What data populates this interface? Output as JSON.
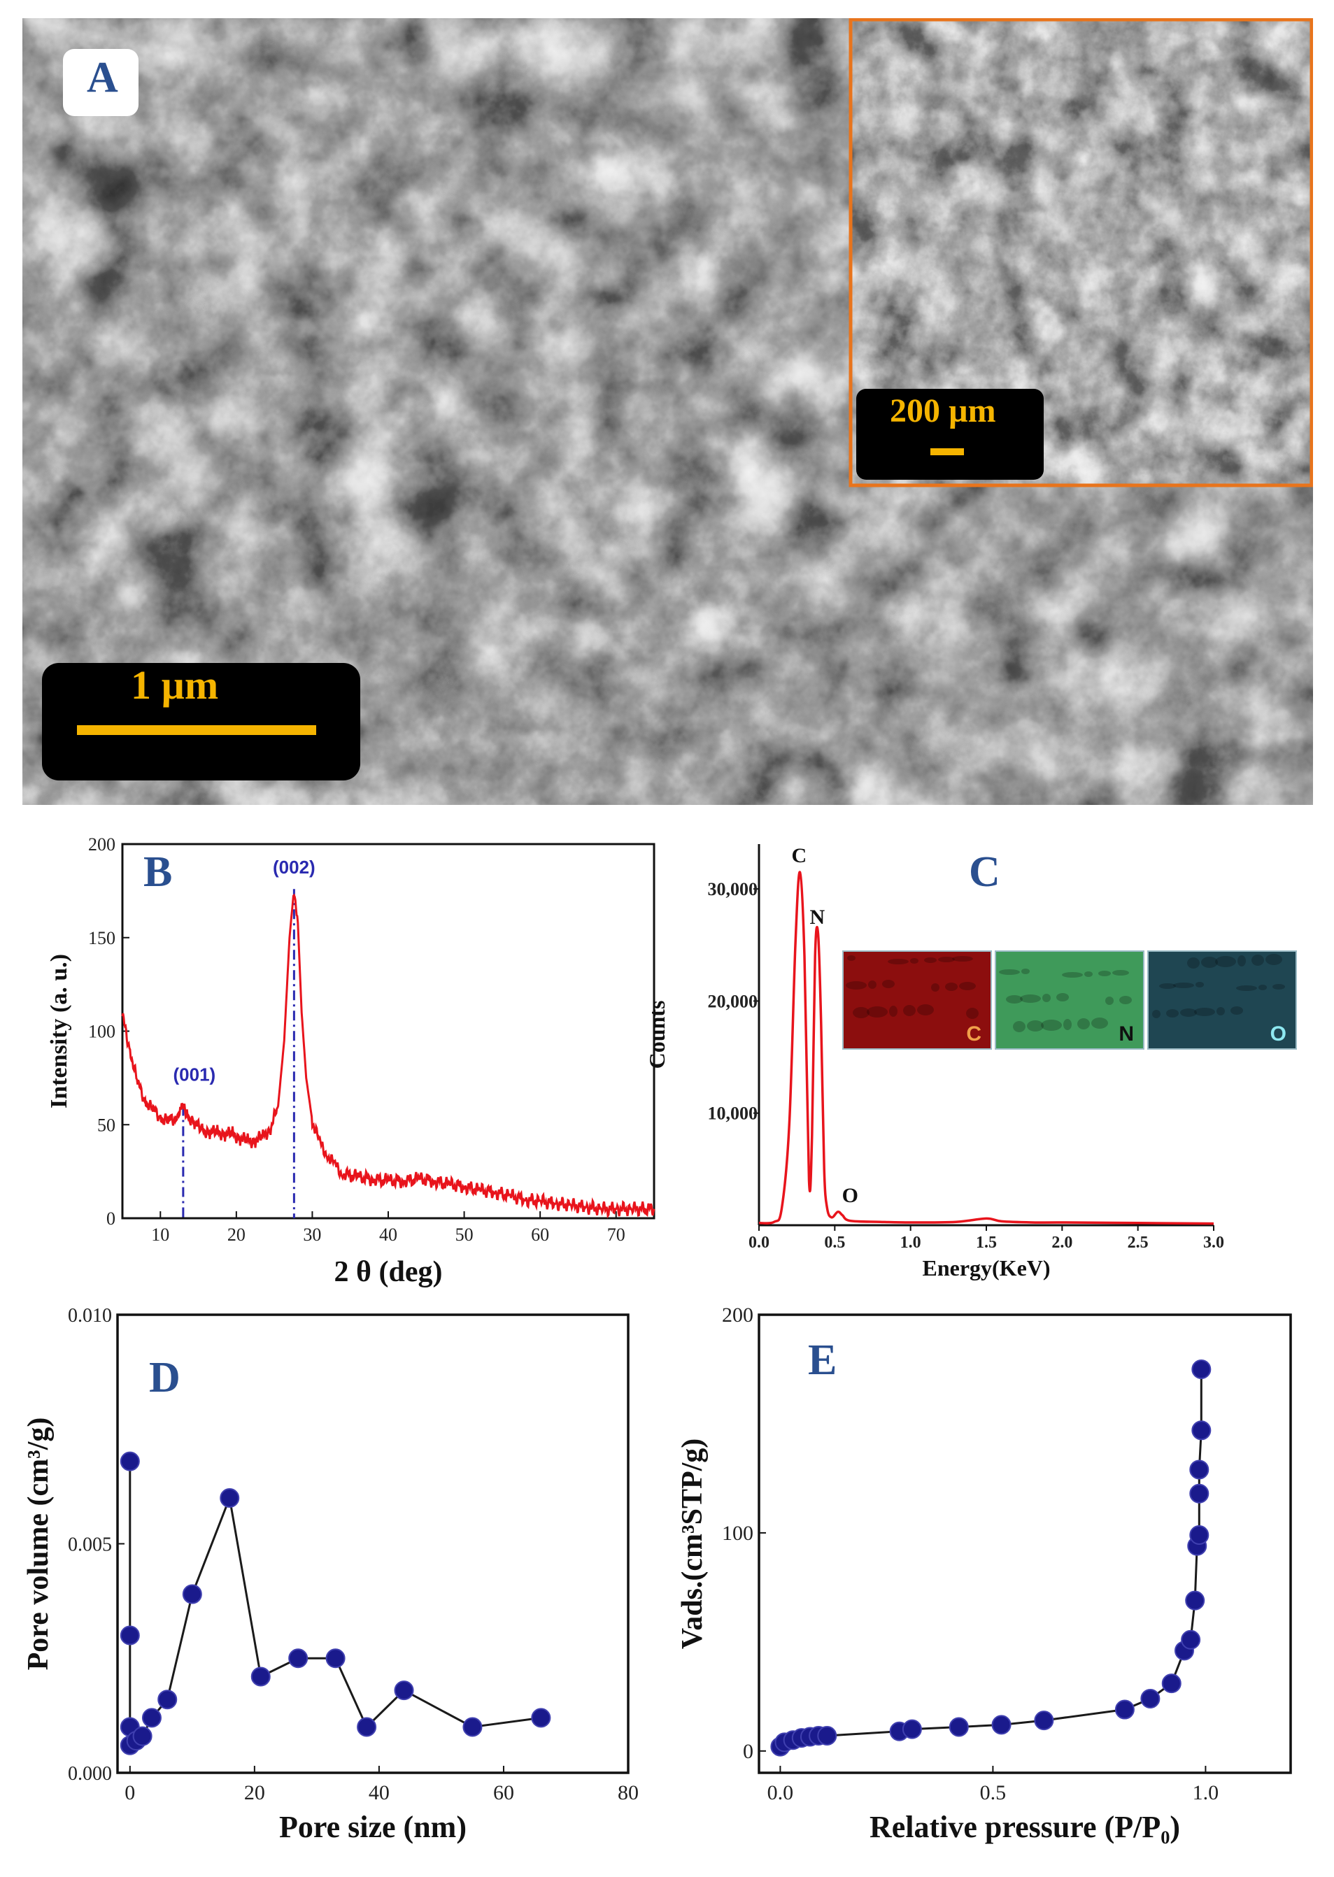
{
  "panel_a": {
    "letter": "A",
    "scalebar_main": "1 µm",
    "scalebar_inset": "200 µm",
    "inset_border_color": "#e8741c",
    "scalebar_color": "#f5b400"
  },
  "chart_data": [
    {
      "id": "B",
      "letter": "B",
      "type": "line",
      "xlabel": "2 θ (deg)",
      "ylabel": "Intensity (a. u.)",
      "xlim": [
        5,
        75
      ],
      "ylim": [
        0,
        200
      ],
      "xticks": [
        10,
        20,
        30,
        40,
        50,
        60,
        70
      ],
      "yticks": [
        0,
        50,
        100,
        150,
        200
      ],
      "line_color": "#e8141c",
      "x": [
        5,
        6,
        7,
        8,
        9,
        10,
        11,
        12,
        12.7,
        13.5,
        14.5,
        15.5,
        16.5,
        17.5,
        18.5,
        19.5,
        20.5,
        21.5,
        22.5,
        23.5,
        24.5,
        25.5,
        26.3,
        27,
        27.6,
        28.1,
        28.6,
        29.2,
        30,
        31,
        32,
        33,
        34,
        36,
        38,
        40,
        42,
        44,
        46,
        48,
        50,
        52,
        54,
        56,
        58,
        60,
        62,
        64,
        66,
        68,
        70,
        72,
        75
      ],
      "y": [
        108,
        90,
        72,
        63,
        58,
        54,
        52,
        53,
        60,
        56,
        50,
        48,
        45,
        47,
        44,
        46,
        42,
        42,
        41,
        44,
        48,
        60,
        95,
        150,
        176,
        158,
        110,
        75,
        52,
        40,
        34,
        28,
        24,
        22,
        21,
        20,
        20,
        21,
        20,
        18,
        17,
        15,
        14,
        12,
        10,
        9,
        8,
        7,
        6,
        5,
        5,
        5,
        5
      ],
      "annotations": [
        {
          "label": "(001)",
          "x": 13.0,
          "y": 60
        },
        {
          "label": "(002)",
          "x": 27.6,
          "y": 176
        }
      ],
      "annotation_color": "#2a2ab0"
    },
    {
      "id": "C",
      "letter": "C",
      "type": "line",
      "xlabel": "Energy(KeV)",
      "ylabel": "Counts",
      "xlim": [
        0,
        3.0
      ],
      "ylim": [
        0,
        34000
      ],
      "xticks": [
        "0.0",
        "0.5",
        "1.0",
        "1.5",
        "2.0",
        "2.5",
        "3.0"
      ],
      "ytick_values": [
        10000,
        20000,
        30000
      ],
      "ytick_labels": [
        "10,000",
        "20,000",
        "30,000"
      ],
      "line_color": "#e8141c",
      "x": [
        0.0,
        0.1,
        0.15,
        0.2,
        0.24,
        0.27,
        0.3,
        0.33,
        0.35,
        0.37,
        0.39,
        0.41,
        0.43,
        0.45,
        0.48,
        0.52,
        0.55,
        0.6,
        0.8,
        1.0,
        1.3,
        1.5,
        1.6,
        1.8,
        2.0,
        2.5,
        3.0
      ],
      "y": [
        200,
        300,
        1500,
        9000,
        25000,
        31500,
        24000,
        4000,
        8000,
        24000,
        26000,
        18000,
        5000,
        1500,
        700,
        1200,
        900,
        400,
        300,
        250,
        300,
        600,
        350,
        250,
        250,
        200,
        150
      ],
      "peak_labels": [
        {
          "label": "C",
          "x": 0.27,
          "y": 31500
        },
        {
          "label": "N",
          "x": 0.39,
          "y": 26000
        },
        {
          "label": "O",
          "x": 0.52,
          "y": 1200
        }
      ],
      "map_tiles": [
        {
          "label": "C",
          "color": "#8c0e0e",
          "label_color": "#f0a04a"
        },
        {
          "label": "N",
          "color": "#3f9a5a",
          "label_color": "#101010"
        },
        {
          "label": "O",
          "color": "#1f4652",
          "label_color": "#8ee8f0"
        }
      ]
    },
    {
      "id": "D",
      "letter": "D",
      "type": "line",
      "xlabel": "Pore size (nm)",
      "ylabel": "Pore volume (cm³/g)",
      "xlim": [
        -2,
        80
      ],
      "ylim": [
        0,
        0.01
      ],
      "xticks": [
        0,
        20,
        40,
        60,
        80
      ],
      "ytick_labels": [
        "0.000",
        "0.005",
        "0.010"
      ],
      "ytick_values": [
        0,
        0.005,
        0.01
      ],
      "marker_color": "#1a1a8c",
      "line_color": "#1a1a1a",
      "x": [
        0,
        0,
        0,
        0,
        1,
        2,
        3.5,
        6,
        10,
        16,
        21,
        27,
        33,
        38,
        44,
        55,
        66
      ],
      "y": [
        0.0068,
        0.003,
        0.001,
        0.0006,
        0.0007,
        0.0008,
        0.0012,
        0.0016,
        0.0039,
        0.006,
        0.0021,
        0.0025,
        0.0025,
        0.001,
        0.0018,
        0.001,
        0.0012
      ]
    },
    {
      "id": "E",
      "letter": "E",
      "type": "line",
      "xlabel": "Relative pressure (P/P₀)",
      "ylabel": "Vads.(cm³STP/g)",
      "xlim": [
        -0.05,
        1.2
      ],
      "ylim": [
        -10,
        200
      ],
      "xticks": [
        "0.0",
        "0.5",
        "1.0"
      ],
      "xtick_values": [
        0,
        0.5,
        1.0
      ],
      "yticks": [
        0,
        100,
        200
      ],
      "marker_color": "#1a1a8c",
      "line_color": "#1a1a1a",
      "x": [
        0.0,
        0.01,
        0.03,
        0.05,
        0.07,
        0.09,
        0.11,
        0.28,
        0.31,
        0.42,
        0.52,
        0.62,
        0.81,
        0.87,
        0.92,
        0.95,
        0.965,
        0.975,
        0.98,
        0.985,
        0.985,
        0.985,
        0.99,
        0.99
      ],
      "y": [
        2,
        4,
        5,
        6,
        6.5,
        7,
        7,
        9,
        10,
        11,
        12,
        14,
        19,
        24,
        31,
        46,
        51,
        69,
        94,
        99,
        118,
        129,
        147,
        175
      ]
    }
  ]
}
